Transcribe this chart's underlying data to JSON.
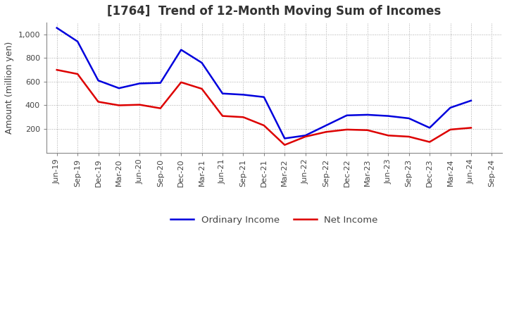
{
  "title": "[1764]  Trend of 12-Month Moving Sum of Incomes",
  "ylabel": "Amount (million yen)",
  "background_color": "#ffffff",
  "plot_background_color": "#ffffff",
  "grid_color": "#aaaaaa",
  "grid_style": ":",
  "x_labels": [
    "Jun-19",
    "Sep-19",
    "Dec-19",
    "Mar-20",
    "Jun-20",
    "Sep-20",
    "Dec-20",
    "Mar-21",
    "Jun-21",
    "Sep-21",
    "Dec-21",
    "Mar-22",
    "Jun-22",
    "Sep-22",
    "Dec-22",
    "Mar-23",
    "Jun-23",
    "Sep-23",
    "Dec-23",
    "Mar-24",
    "Jun-24",
    "Sep-24"
  ],
  "ordinary_income": [
    1055,
    940,
    610,
    545,
    585,
    590,
    870,
    760,
    500,
    490,
    470,
    120,
    145,
    230,
    315,
    320,
    310,
    290,
    210,
    380,
    440,
    null
  ],
  "net_income": [
    700,
    665,
    430,
    400,
    405,
    375,
    595,
    540,
    310,
    300,
    230,
    65,
    135,
    175,
    195,
    190,
    145,
    135,
    90,
    195,
    210,
    null
  ],
  "ordinary_income_color": "#0000dd",
  "net_income_color": "#dd0000",
  "line_width": 1.8,
  "ylim_min": 0,
  "ylim_max": 1100,
  "yticks": [
    200,
    400,
    600,
    800,
    1000
  ],
  "ytick_labels": [
    "200",
    "400",
    "600",
    "800",
    "1,000"
  ],
  "legend_ordinary": "Ordinary Income",
  "legend_net": "Net Income",
  "title_fontsize": 12,
  "axis_fontsize": 9,
  "tick_fontsize": 8,
  "title_color": "#333333",
  "tick_color": "#444444"
}
